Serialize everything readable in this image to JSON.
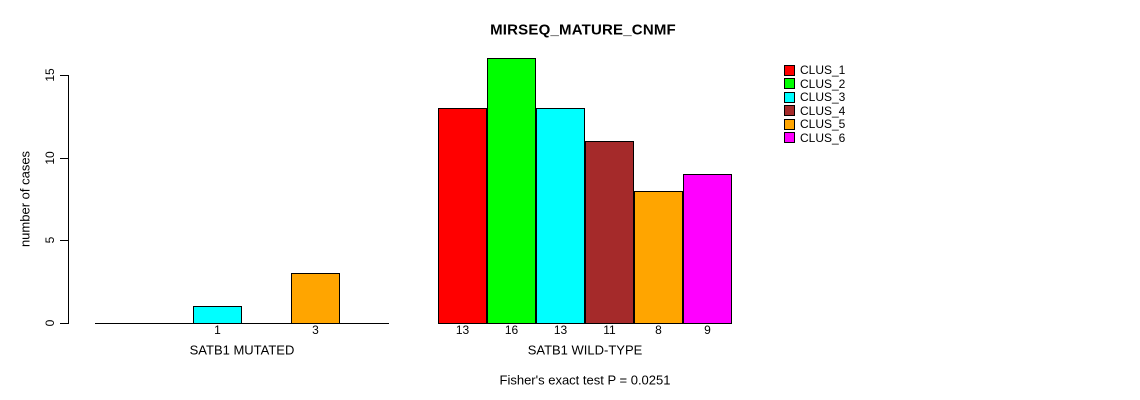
{
  "chart_data": {
    "type": "bar",
    "title": "MIRSEQ_MATURE_CNMF",
    "ylabel": "number of cases",
    "xlabel": "",
    "yticks": [
      0,
      5,
      10,
      15
    ],
    "ylim": [
      0,
      15
    ],
    "grid": false,
    "legend_position": "right",
    "legend": [
      {
        "label": "CLUS_1",
        "color": "#FF0000"
      },
      {
        "label": "CLUS_2",
        "color": "#00FF00"
      },
      {
        "label": "CLUS_3",
        "color": "#00FFFF"
      },
      {
        "label": "CLUS_4",
        "color": "#A52A2A"
      },
      {
        "label": "CLUS_5",
        "color": "#FFA500"
      },
      {
        "label": "CLUS_6",
        "color": "#FF00FF"
      }
    ],
    "categories": [
      "CLUS_1",
      "CLUS_2",
      "CLUS_3",
      "CLUS_4",
      "CLUS_5",
      "CLUS_6"
    ],
    "groups": [
      {
        "label": "SATB1 MUTATED",
        "values": [
          0,
          0,
          1,
          0,
          3,
          0
        ]
      },
      {
        "label": "SATB1 WILD-TYPE",
        "values": [
          13,
          16,
          13,
          11,
          8,
          9
        ]
      }
    ],
    "footnote": "Fisher's exact test P = 0.0251"
  }
}
